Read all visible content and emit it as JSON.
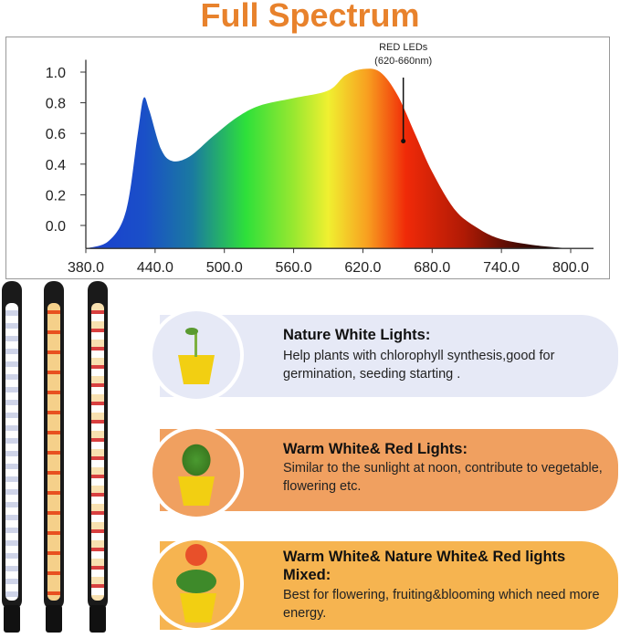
{
  "title": "Full Spectrum",
  "chart_data": {
    "type": "area",
    "title": "",
    "xlabel": "",
    "ylabel": "",
    "x_ticks": [
      "380.0",
      "440.0",
      "500.0",
      "560.0",
      "620.0",
      "680.0",
      "740.0",
      "800.0"
    ],
    "y_ticks": [
      "0.0",
      "0.2",
      "0.4",
      "0.6",
      "0.8",
      "1.0"
    ],
    "xlim": [
      380,
      800
    ],
    "ylim": [
      -0.15,
      1.05
    ],
    "fill": "wavelength color gradient",
    "x": [
      380,
      400,
      415,
      425,
      430,
      435,
      445,
      455,
      470,
      490,
      510,
      530,
      560,
      590,
      605,
      620,
      635,
      650,
      665,
      680,
      700,
      720,
      740,
      770,
      800
    ],
    "y": [
      -0.15,
      -0.1,
      0.1,
      0.6,
      0.83,
      0.75,
      0.5,
      0.42,
      0.45,
      0.58,
      0.7,
      0.78,
      0.83,
      0.88,
      0.98,
      1.02,
      1.0,
      0.85,
      0.6,
      0.35,
      0.1,
      -0.02,
      -0.09,
      -0.13,
      -0.15
    ],
    "annotation": {
      "line1": "RED LEDs",
      "line2": "(620-660nm)",
      "x": 655,
      "y": 0.55
    }
  },
  "panels": [
    {
      "title": "Nature White Lights:",
      "body": "Help plants with chlorophyll synthesis,good for germination, seeding starting .",
      "color": "#e6e9f6",
      "icon": "seedling-pot-icon"
    },
    {
      "title": "Warm White& Red Lights:",
      "body": "Similar to the sunlight at noon,  contribute to vegetable, flowering etc.",
      "color": "#f0a060",
      "icon": "pepper-plant-pot-icon"
    },
    {
      "title": "Warm White& Nature White& Red lights Mixed:",
      "body": "Best for flowering, fruiting&blooming which need more energy.",
      "color": "#f6b450",
      "icon": "flower-pot-icon"
    }
  ]
}
